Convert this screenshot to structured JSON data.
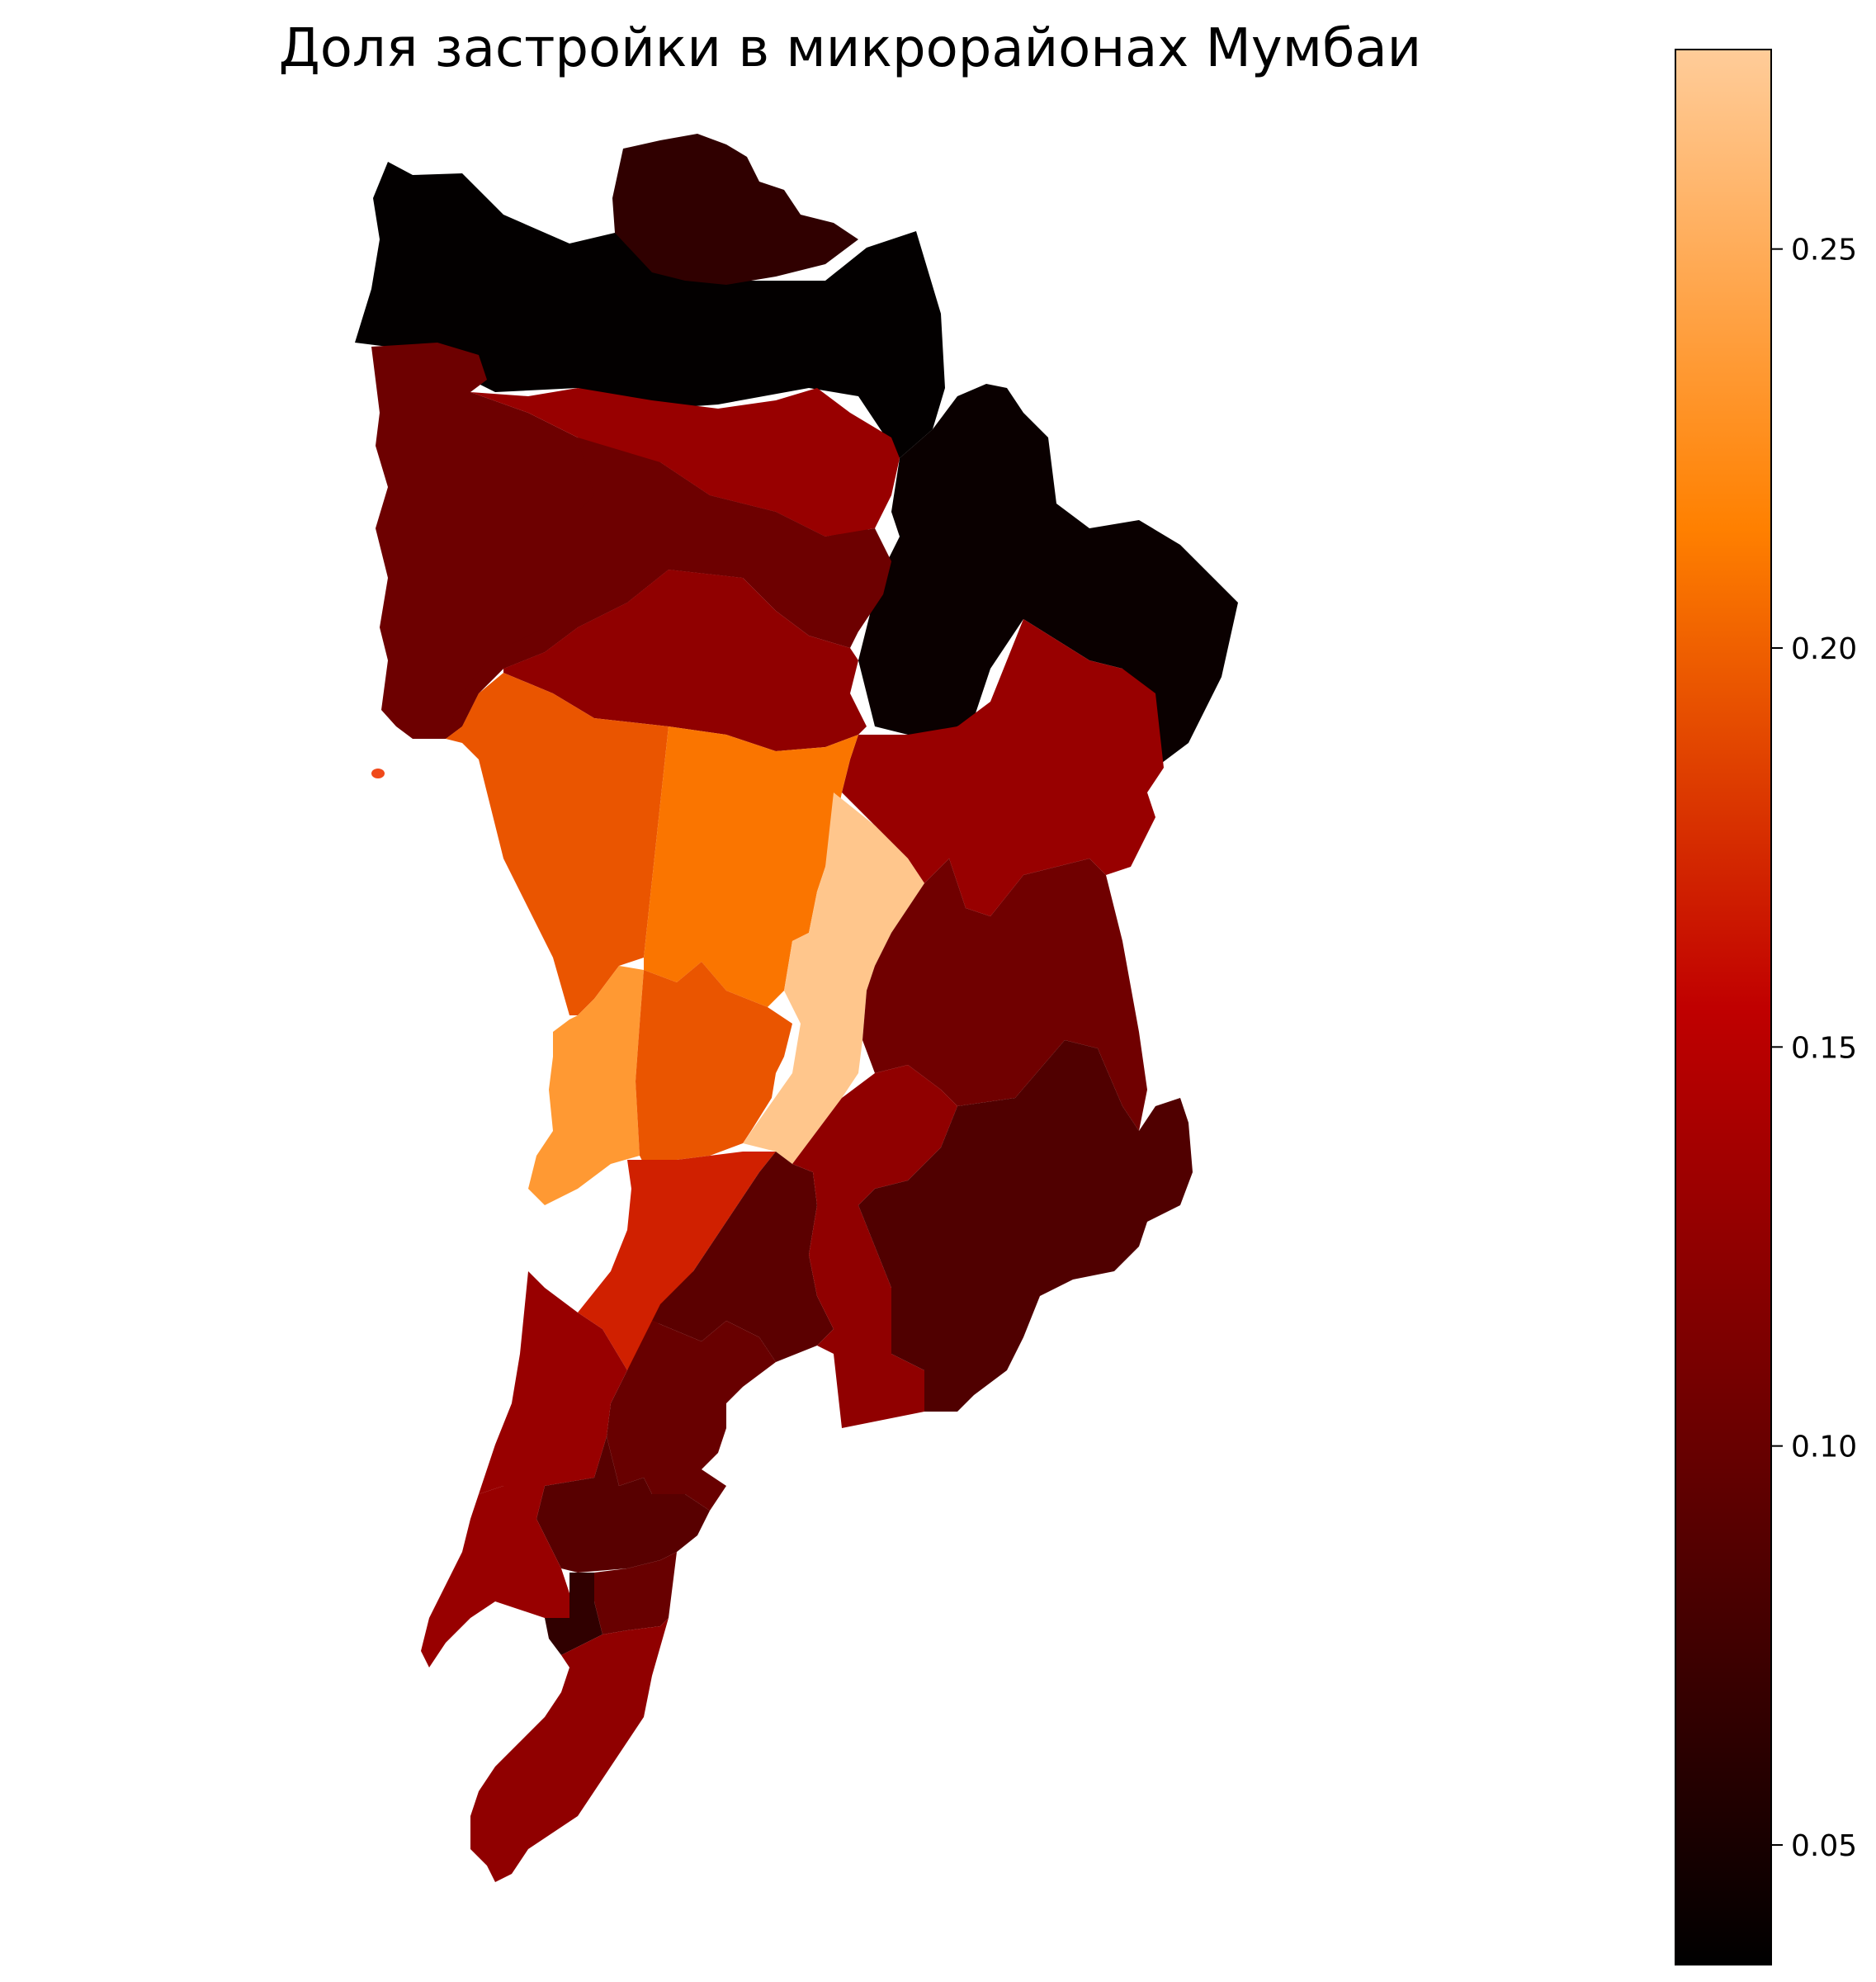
{
  "title": "Доля застройки в микрорайонах Мумбаи",
  "colormap": {
    "name": "gist_heat",
    "range": [
      0.035,
      0.275
    ],
    "stops": [
      {
        "at": 0.0,
        "color": "#000000"
      },
      {
        "at": 0.25,
        "color": "#600000"
      },
      {
        "at": 0.5,
        "color": "#c00000"
      },
      {
        "at": 0.75,
        "color": "#ff8000"
      },
      {
        "at": 1.0,
        "color": "#ffcc99"
      }
    ]
  },
  "colorbar": {
    "ticks": [
      "0.05",
      "0.10",
      "0.15",
      "0.20",
      "0.25"
    ]
  },
  "wards": [
    {
      "id": "north-west",
      "value": 0.037
    },
    {
      "id": "north-center",
      "value": 0.065
    },
    {
      "id": "north-east",
      "value": 0.041
    },
    {
      "id": "west-upper",
      "value": 0.103
    },
    {
      "id": "band-red-1",
      "value": 0.13
    },
    {
      "id": "band-dark-2",
      "value": 0.103
    },
    {
      "id": "band-red-3",
      "value": 0.125
    },
    {
      "id": "east-red",
      "value": 0.13
    },
    {
      "id": "west-orange",
      "value": 0.195
    },
    {
      "id": "center-orange",
      "value": 0.21
    },
    {
      "id": "peach",
      "value": 0.27
    },
    {
      "id": "coast-orange",
      "value": 0.235
    },
    {
      "id": "mid-orange",
      "value": 0.195
    },
    {
      "id": "east-mid",
      "value": 0.105
    },
    {
      "id": "red-bright",
      "value": 0.17
    },
    {
      "id": "dark-a",
      "value": 0.092
    },
    {
      "id": "east-red-2",
      "value": 0.125
    },
    {
      "id": "east-low",
      "value": 0.085
    },
    {
      "id": "south-red-west",
      "value": 0.13
    },
    {
      "id": "south-dark",
      "value": 0.1
    },
    {
      "id": "south-small-1",
      "value": 0.09
    },
    {
      "id": "south-red-2",
      "value": 0.13
    },
    {
      "id": "south-dark-small",
      "value": 0.065
    },
    {
      "id": "south-small-2",
      "value": 0.1
    },
    {
      "id": "south-tip",
      "value": 0.125
    }
  ]
}
